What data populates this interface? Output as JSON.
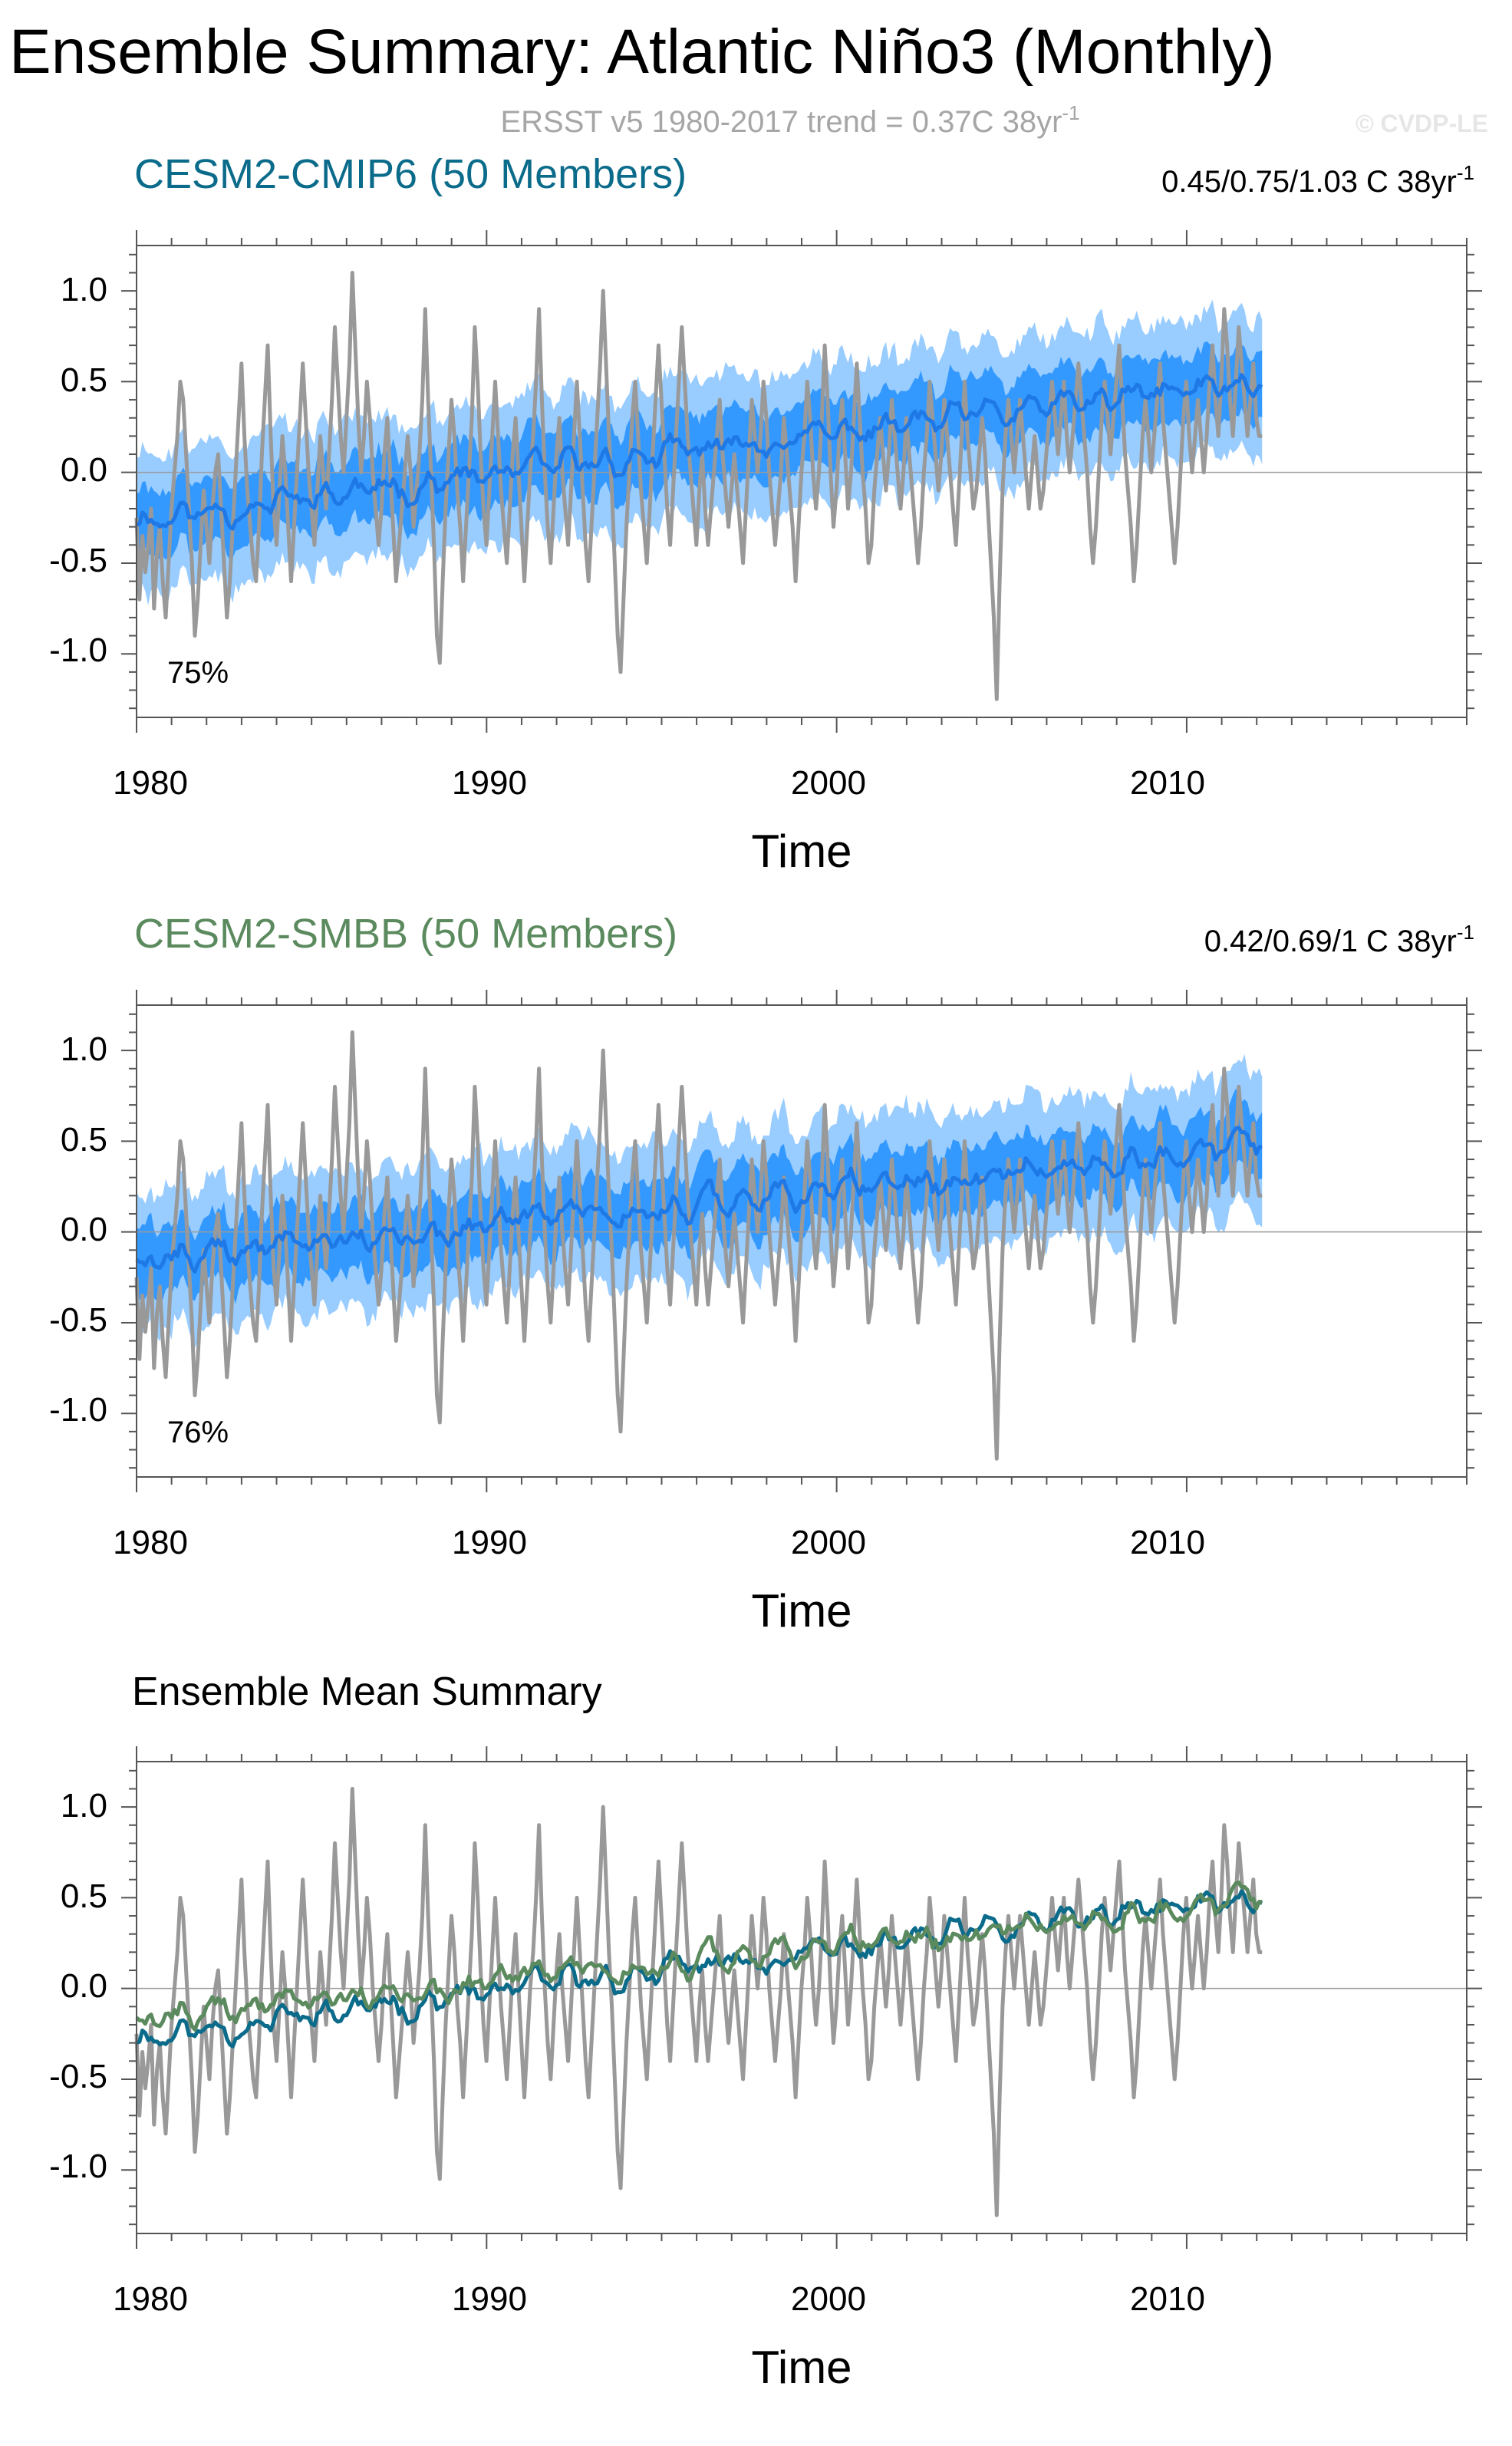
{
  "figure": {
    "title": "Ensemble Summary: Atlantic Niño3 (Monthly)",
    "subtitle_prefix": "ERSST v5 1980-2017 trend = 0.37C 38yr",
    "subtitle_exp": "-1",
    "watermark": "© CVDP-LE"
  },
  "colors": {
    "obs": "#999999",
    "band_outer": "#99ccff",
    "band_inner": "#3399ff",
    "mean_line": "#1e78e6",
    "cmip6": "#0b6b8a",
    "smbb": "#5b8a5e",
    "axis": "#555555",
    "zero_line": "#9a9a9a"
  },
  "chart_data": [
    {
      "type": "line",
      "title": "CESM2-CMIP6 (50 Members)",
      "title_color": "#0b6b8a",
      "trend_label": "0.45/0.75/1.03 C 38yr",
      "trend_exp": "-1",
      "percent_label": "75%",
      "xlabel": "Time",
      "ylabel": "",
      "xlim": [
        1980,
        2018
      ],
      "ylim": [
        -1.35,
        1.25
      ],
      "xticks": [
        "1980",
        "1990",
        "2000",
        "2010"
      ],
      "yticks": [
        "1.0",
        "0.5",
        "0.0",
        "-0.5",
        "-1.0"
      ],
      "series": [
        {
          "name": "ERSST v5 observed",
          "kind": "obs"
        },
        {
          "name": "Ensemble 10th-90th percentile",
          "kind": "band_outer"
        },
        {
          "name": "Ensemble 25th-75th percentile",
          "kind": "band_inner"
        },
        {
          "name": "Ensemble mean",
          "kind": "mean",
          "start": -0.26,
          "end": 0.5
        }
      ]
    },
    {
      "type": "line",
      "title": "CESM2-SMBB (50 Members)",
      "title_color": "#5b8a5e",
      "trend_label": "0.42/0.69/1 C 38yr",
      "trend_exp": "-1",
      "percent_label": "76%",
      "xlabel": "Time",
      "ylabel": "",
      "xlim": [
        1980,
        2018
      ],
      "ylim": [
        -1.35,
        1.25
      ],
      "xticks": [
        "1980",
        "1990",
        "2000",
        "2010"
      ],
      "yticks": [
        "1.0",
        "0.5",
        "0.0",
        "-0.5",
        "-1.0"
      ],
      "series": [
        {
          "name": "ERSST v5 observed",
          "kind": "obs"
        },
        {
          "name": "Ensemble 10th-90th percentile",
          "kind": "band_outer"
        },
        {
          "name": "Ensemble 25th-75th percentile",
          "kind": "band_inner"
        },
        {
          "name": "Ensemble mean",
          "kind": "mean",
          "start": -0.15,
          "end": 0.46
        }
      ]
    },
    {
      "type": "line",
      "title": "Ensemble Mean Summary",
      "title_color": "#000000",
      "trend_label": "",
      "trend_exp": "",
      "percent_label": "",
      "xlabel": "Time",
      "ylabel": "",
      "xlim": [
        1980,
        2018
      ],
      "ylim": [
        -1.35,
        1.25
      ],
      "xticks": [
        "1980",
        "1990",
        "2000",
        "2010"
      ],
      "yticks": [
        "1.0",
        "0.5",
        "0.0",
        "-0.5",
        "-1.0"
      ],
      "series": [
        {
          "name": "ERSST v5 observed",
          "kind": "obs"
        },
        {
          "name": "CESM2-CMIP6 ensemble mean",
          "kind": "cmip6_mean",
          "start": -0.27,
          "end": 0.5
        },
        {
          "name": "CESM2-SMBB ensemble mean",
          "kind": "smbb_mean",
          "start": -0.16,
          "end": 0.47
        }
      ]
    }
  ],
  "observed_anomaly": {
    "name": "ERSST v5 Atlantic Niño3 anomaly (approx. monthly, read from figure)",
    "start_year": 1980.0,
    "step_years": 0.0833,
    "values": [
      -0.25,
      -0.7,
      -0.35,
      -0.55,
      -0.4,
      -0.2,
      -0.75,
      -0.45,
      -0.3,
      -0.6,
      -0.8,
      -0.5,
      -0.2,
      0.0,
      0.2,
      0.5,
      0.4,
      0.1,
      -0.2,
      -0.5,
      -0.9,
      -0.7,
      -0.4,
      -0.1,
      -0.3,
      -0.5,
      -0.2,
      0.0,
      0.1,
      -0.2,
      -0.5,
      -0.8,
      -0.6,
      -0.3,
      0.0,
      0.3,
      0.6,
      0.2,
      -0.1,
      -0.3,
      -0.5,
      -0.6,
      -0.3,
      0.1,
      0.4,
      0.7,
      0.2,
      -0.2,
      -0.4,
      -0.1,
      0.2,
      0.0,
      -0.3,
      -0.6,
      -0.3,
      0.0,
      0.3,
      0.6,
      0.3,
      0.0,
      -0.2,
      -0.4,
      -0.1,
      0.2,
      0.0,
      -0.2,
      0.1,
      0.4,
      0.8,
      0.5,
      0.2,
      0.0,
      0.3,
      0.6,
      1.1,
      0.7,
      0.3,
      0.0,
      0.2,
      0.5,
      0.3,
      0.0,
      -0.2,
      -0.4,
      -0.2,
      0.1,
      0.3,
      0.0,
      -0.3,
      -0.6,
      -0.4,
      -0.2,
      0.0,
      0.2,
      0.0,
      -0.3,
      -0.1,
      0.1,
      0.4,
      0.9,
      0.4,
      0.0,
      -0.4,
      -0.9,
      -1.05,
      -0.6,
      -0.2,
      0.1,
      0.4,
      0.2,
      -0.1,
      -0.3,
      -0.6,
      -0.3,
      0.0,
      0.3,
      0.8,
      0.5,
      0.1,
      -0.2,
      -0.4,
      -0.1,
      0.2,
      0.5,
      0.2,
      -0.1,
      -0.3,
      -0.5,
      -0.2,
      0.1,
      0.3,
      0.0,
      -0.3,
      -0.6,
      -0.3,
      0.0,
      0.2,
      0.5,
      0.9,
      0.4,
      0.0,
      -0.3,
      -0.5,
      -0.2,
      0.1,
      0.3,
      0.0,
      -0.2,
      -0.4,
      -0.1,
      0.2,
      0.5,
      0.2,
      -0.1,
      -0.4,
      -0.6,
      -0.3,
      0.0,
      0.3,
      0.6,
      1.0,
      0.6,
      0.2,
      -0.1,
      -0.5,
      -0.9,
      -1.1,
      -0.7,
      -0.3,
      0.0,
      0.3,
      0.5,
      0.2,
      -0.1,
      -0.3,
      -0.5,
      -0.2,
      0.1,
      0.4,
      0.7,
      0.4,
      0.1,
      -0.2,
      -0.4,
      -0.1,
      0.2,
      0.5,
      0.8,
      0.5,
      0.2,
      0.0,
      -0.2,
      -0.4,
      -0.1,
      0.1,
      -0.2,
      -0.4,
      -0.2,
      0.0,
      0.2,
      0.4,
      0.1,
      -0.1,
      -0.3,
      -0.1,
      0.1,
      -0.1,
      -0.3,
      -0.5,
      -0.2,
      0.1,
      0.4,
      0.2,
      0.0,
      0.2,
      0.5,
      0.3,
      0.0,
      -0.2,
      -0.4,
      -0.2,
      0.0,
      0.3,
      0.1,
      -0.1,
      -0.3,
      -0.6,
      -0.3,
      0.0,
      0.2,
      0.5,
      0.3,
      0.0,
      -0.2,
      0.0,
      0.3,
      0.7,
      0.4,
      0.0,
      -0.3,
      -0.1,
      0.2,
      0.4,
      0.1,
      -0.2,
      0.0,
      0.3,
      0.6,
      0.3,
      0.0,
      -0.2,
      -0.5,
      -0.4,
      -0.1,
      0.1,
      0.3,
      0.1,
      -0.1,
      0.1,
      0.4,
      0.2,
      0.0,
      -0.2,
      0.0,
      0.3,
      0.1,
      -0.1,
      -0.3,
      -0.5,
      -0.3,
      0.0,
      0.2,
      0.5,
      0.3,
      0.1,
      -0.1,
      0.1,
      0.4,
      0.2,
      0.0,
      -0.2,
      -0.4,
      -0.1,
      0.2,
      0.5,
      0.2,
      0.0,
      -0.2,
      -0.1,
      0.1,
      0.3,
      0.1,
      -0.2,
      -0.5,
      -0.8,
      -1.25,
      -0.6,
      -0.1,
      0.2,
      0.4,
      0.2,
      0.0,
      0.2,
      0.4,
      0.2,
      0.0,
      -0.2,
      0.0,
      0.2,
      0.0,
      -0.2,
      -0.1,
      0.1,
      0.3,
      0.5,
      0.3,
      0.1,
      0.3,
      0.5,
      0.2,
      0.0,
      0.2,
      0.4,
      0.6,
      0.4,
      0.2,
      0.0,
      -0.3,
      -0.5,
      -0.3,
      0.0,
      0.3,
      0.5,
      0.3,
      0.1,
      0.3,
      0.5,
      0.7,
      0.4,
      0.1,
      -0.1,
      -0.3,
      -0.6,
      -0.4,
      -0.1,
      0.2,
      0.4,
      0.2,
      0.0,
      0.2,
      0.4,
      0.6,
      0.3,
      0.1,
      -0.1,
      -0.3,
      -0.5,
      -0.3,
      0.0,
      0.3,
      0.5,
      0.2,
      0.0,
      0.2,
      0.4,
      0.2,
      0.0,
      0.2,
      0.5,
      0.7,
      0.4,
      0.2,
      0.5,
      0.9,
      0.7,
      0.4,
      0.2,
      0.5,
      0.8,
      0.6,
      0.4,
      0.2,
      0.4,
      0.6,
      0.3,
      0.2,
      0.2
    ]
  }
}
